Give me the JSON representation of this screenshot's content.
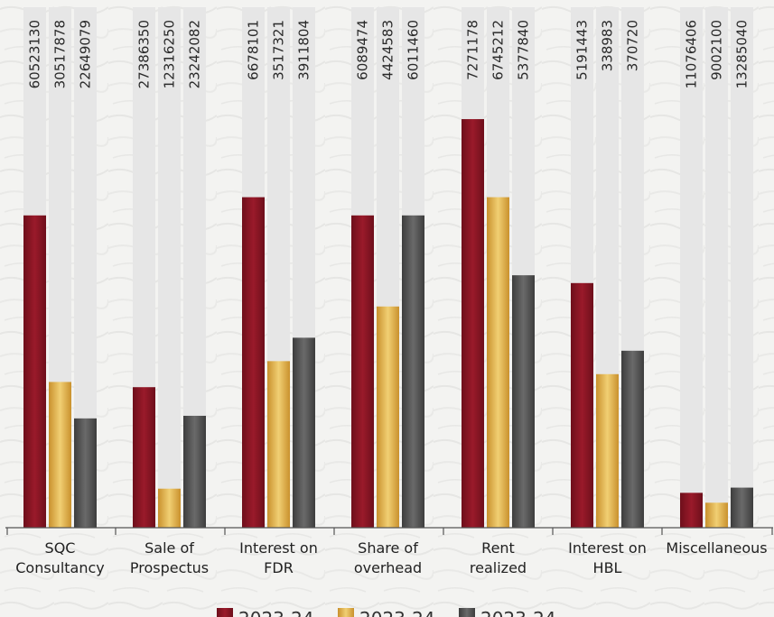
{
  "chart_data": {
    "type": "bar",
    "title": "",
    "xlabel": "",
    "ylabel": "",
    "categories": [
      [
        "SQC",
        "Consultancy"
      ],
      [
        "Sale of",
        "Prospectus"
      ],
      [
        "Interest on",
        "FDR"
      ],
      [
        "Share of",
        "overhead"
      ],
      [
        "Rent",
        "realized"
      ],
      [
        "Interest on",
        "HBL"
      ],
      [
        "Miscellaneous"
      ]
    ],
    "value_labels": [
      [
        "60523130",
        "30517878",
        "22649079"
      ],
      [
        "27386350",
        "12316250",
        "23242082"
      ],
      [
        "6678101",
        "3517321",
        "3911804"
      ],
      [
        "6089474",
        "4424583",
        "6011460"
      ],
      [
        "7271178",
        "6745212",
        "5377840"
      ],
      [
        "5191443",
        "338983",
        "370720"
      ],
      [
        "11076406",
        "9002100",
        "13285040"
      ]
    ],
    "bar_height_fraction": [
      [
        0.6,
        0.28,
        0.21
      ],
      [
        0.27,
        0.075,
        0.215
      ],
      [
        0.635,
        0.32,
        0.365
      ],
      [
        0.6,
        0.425,
        0.6
      ],
      [
        0.785,
        0.635,
        0.485
      ],
      [
        0.47,
        0.295,
        0.34
      ],
      [
        0.067,
        0.048,
        0.077
      ]
    ],
    "series": [
      {
        "name": "2023-24",
        "color": "#8b1423"
      },
      {
        "name": "2023-24",
        "color": "#e4b54a"
      },
      {
        "name": "2023-24",
        "color": "#555555"
      }
    ],
    "legend_position": "bottom",
    "grid": false,
    "background_bar_color": "#e6e6e6"
  }
}
